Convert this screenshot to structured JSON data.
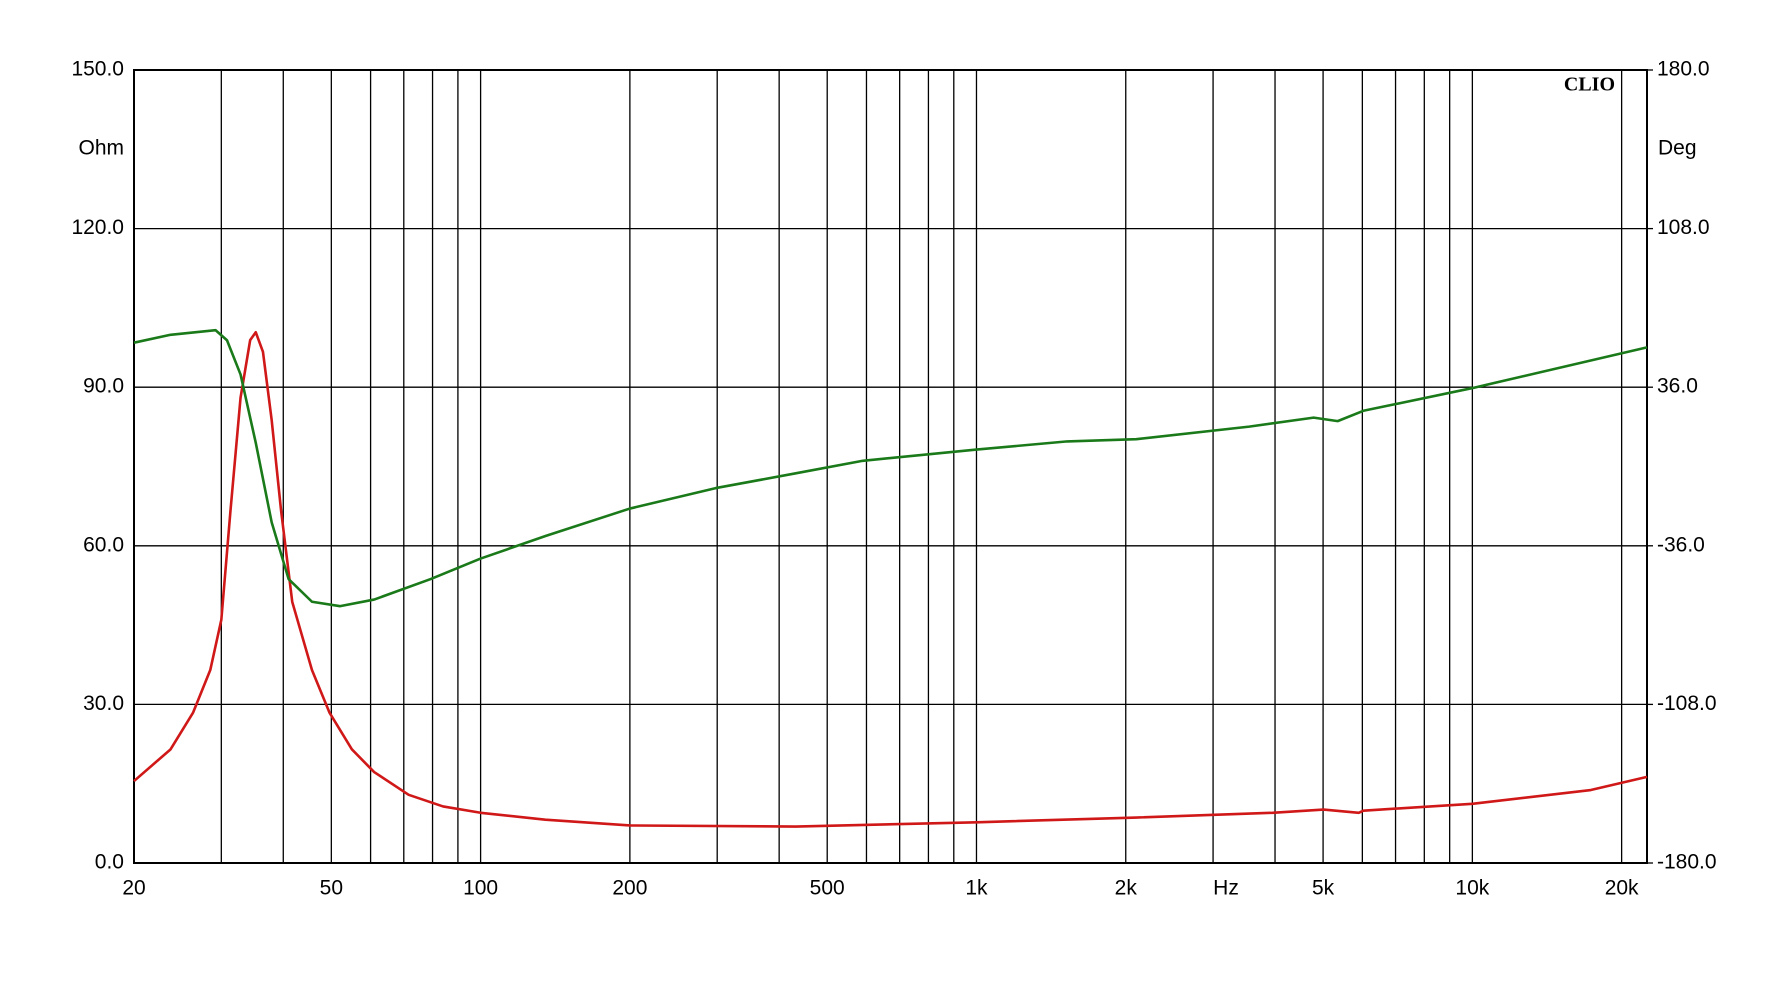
{
  "chart_data": {
    "type": "line",
    "brand": "CLIO",
    "ylabel": "Ohm",
    "y2label": "Deg",
    "xlabel": "Hz",
    "xscale": "log",
    "grid": true,
    "xlim": [
      20,
      22500
    ],
    "xticks": [
      20,
      50,
      100,
      200,
      500,
      {
        "value": 1000,
        "label": "1k"
      },
      {
        "value": 2000,
        "label": "2k"
      },
      {
        "value": 5000,
        "label": "5k"
      },
      {
        "value": 10000,
        "label": "10k"
      },
      {
        "value": 20000,
        "label": "20k"
      }
    ],
    "xgrid": [
      30,
      40,
      60,
      70,
      80,
      90,
      300,
      400,
      600,
      700,
      800,
      900,
      3000,
      4000,
      6000,
      7000,
      8000,
      9000
    ],
    "ylim": [
      0,
      150
    ],
    "yticks": [
      {
        "value": 0,
        "label": "0.0"
      },
      {
        "value": 30,
        "label": "30.0"
      },
      {
        "value": 60,
        "label": "60.0"
      },
      {
        "value": 90,
        "label": "90.0"
      },
      {
        "value": 120,
        "label": "120.0"
      },
      {
        "value": 150,
        "label": "150.0"
      }
    ],
    "y2lim": [
      -180,
      180
    ],
    "y2ticks": [
      {
        "value": -180,
        "label": "-180.0"
      },
      {
        "value": -108,
        "label": "-108.0"
      },
      {
        "value": -36,
        "label": "-36.0"
      },
      {
        "value": 36,
        "label": "36.0"
      },
      {
        "value": 108,
        "label": "108.0"
      },
      {
        "value": 180,
        "label": "180.0"
      }
    ],
    "series": [
      {
        "color": "#d01818",
        "axis": "y",
        "x": [
          20,
          23.7,
          26.3,
          28.5,
          30,
          31.3,
          32.8,
          34.3,
          35.2,
          36.4,
          37.9,
          39.6,
          41.7,
          45.7,
          49.6,
          55,
          61,
          71.6,
          84,
          100,
          135,
          200,
          432,
          1000,
          2100,
          3953,
          5012,
          5900,
          6030,
          10000,
          17330,
          22500
        ],
        "values": [
          15.5,
          21.5,
          28.4,
          36.5,
          46,
          66.6,
          88,
          98.9,
          100.4,
          96.7,
          83.8,
          66.6,
          49.4,
          36.5,
          28.4,
          21.5,
          17.2,
          12.9,
          10.7,
          9.5,
          8.2,
          7.1,
          6.9,
          7.7,
          8.6,
          9.5,
          10.1,
          9.5,
          9.9,
          11.2,
          13.8,
          16.3
        ]
      },
      {
        "color": "#1a7a1a",
        "axis": "y2",
        "x": [
          20,
          23.7,
          29.2,
          30.8,
          32.8,
          35.2,
          37.9,
          41,
          45.7,
          52.1,
          61,
          79.3,
          100,
          135.4,
          200,
          298,
          432,
          590,
          1000,
          1525,
          2100,
          3548,
          4786,
          5350,
          6030,
          10000,
          22500
        ],
        "values": [
          56.2,
          59.8,
          61.9,
          57.3,
          41.8,
          10.8,
          -25.3,
          -51.1,
          -61.4,
          -63.4,
          -60.4,
          -51.1,
          -41.8,
          -31.5,
          -19.1,
          -9.8,
          -3.1,
          2.6,
          7.7,
          11.4,
          12.4,
          18.1,
          22.2,
          20.6,
          25.3,
          35.6,
          54.1
        ]
      }
    ]
  }
}
